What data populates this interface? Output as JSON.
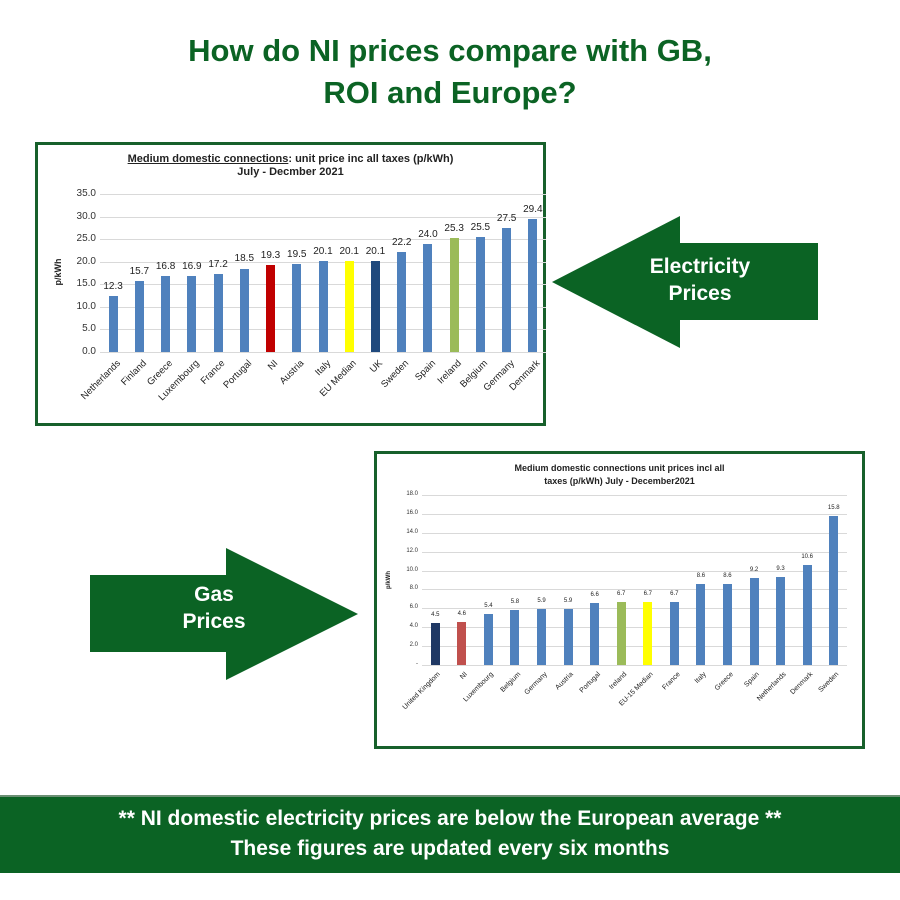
{
  "header": {
    "title_line1": "How do NI prices compare with GB,",
    "title_line2": "ROI and Europe?"
  },
  "electricity_arrow": {
    "line1": "Electricity",
    "line2": "Prices",
    "direction": "left",
    "color": "#0b6324"
  },
  "gas_arrow": {
    "line1": "Gas",
    "line2": "Prices",
    "direction": "right",
    "color": "#0b6324"
  },
  "banner": {
    "line1": "** NI domestic electricity prices are below the European average  **",
    "line2": "These figures are updated every six months",
    "color": "#0b6324"
  },
  "electricity_chart": {
    "title_underlined": "Medium domestic connections",
    "title_rest": ": unit price inc all taxes (p/kWh)",
    "subtitle": "July - Decmber 2021",
    "ylabel": "p/kWh",
    "yticks": [
      "35.0",
      "30.0",
      "25.0",
      "20.0",
      "15.0",
      "10.0",
      "5.0",
      "0.0"
    ]
  },
  "gas_chart": {
    "title_line1": "Medium domestic connections unit prices incl all",
    "title_line2": "taxes (p/kWh) July - December2021",
    "ylabel": "p/kWh",
    "yticks": [
      "18.0",
      "16.0",
      "14.0",
      "12.0",
      "10.0",
      "8.0",
      "6.0",
      "4.0",
      "2.0",
      "-"
    ]
  },
  "chart_data": [
    {
      "type": "bar",
      "title": "Medium domestic connections: unit price inc all taxes (p/kWh) July - Decmber 2021",
      "xlabel": "",
      "ylabel": "p/kWh",
      "ylim": [
        0,
        35
      ],
      "grid": true,
      "legend": "none",
      "categories": [
        "Netherlands",
        "Finland",
        "Greece",
        "Luxembourg",
        "France",
        "Portugal",
        "NI",
        "Austria",
        "Italy",
        "EU Median",
        "UK",
        "Sweden",
        "Spain",
        "Ireland",
        "Belgium",
        "Germany",
        "Denmark"
      ],
      "values": [
        12.3,
        15.7,
        16.8,
        16.9,
        17.2,
        18.5,
        19.3,
        19.5,
        20.1,
        20.1,
        20.1,
        22.2,
        24.0,
        25.3,
        25.5,
        27.5,
        29.4
      ],
      "labels": [
        "12.3",
        "15.7",
        "16.8",
        "16.9",
        "17.2",
        "18.5",
        "19.3",
        "19.5",
        "20.1",
        "20.1",
        "20.1",
        "22.2",
        "24.0",
        "25.3",
        "25.5",
        "27.5",
        "29.4"
      ],
      "colors": [
        "#4f81bd",
        "#4f81bd",
        "#4f81bd",
        "#4f81bd",
        "#4f81bd",
        "#4f81bd",
        "#c00000",
        "#4f81bd",
        "#4f81bd",
        "#ffff00",
        "#1f497d",
        "#4f81bd",
        "#4f81bd",
        "#9bbb59",
        "#4f81bd",
        "#4f81bd",
        "#4f81bd"
      ]
    },
    {
      "type": "bar",
      "title": "Medium domestic connections unit prices incl all taxes (p/kWh) July - December2021",
      "xlabel": "",
      "ylabel": "p/kWh",
      "ylim": [
        0,
        18
      ],
      "grid": true,
      "legend": "none",
      "categories": [
        "United Kingdom",
        "NI",
        "Luxembourg",
        "Belgium",
        "Germany",
        "Austria",
        "Portugal",
        "Ireland",
        "EU-15 Median",
        "France",
        "Italy",
        "Greece",
        "Spain",
        "Netherlands",
        "Denmark",
        "Sweden"
      ],
      "values": [
        4.5,
        4.6,
        5.4,
        5.8,
        5.9,
        5.9,
        6.6,
        6.7,
        6.7,
        6.7,
        8.6,
        8.6,
        9.2,
        9.3,
        10.6,
        15.8
      ],
      "labels": [
        "4.5",
        "4.6",
        "5.4",
        "5.8",
        "5.9",
        "5.9",
        "6.6",
        "6.7",
        "6.7",
        "6.7",
        "8.6",
        "8.6",
        "9.2",
        "9.3",
        "10.6",
        "15.8"
      ],
      "colors": [
        "#1f3864",
        "#c0504d",
        "#4f81bd",
        "#4f81bd",
        "#4f81bd",
        "#4f81bd",
        "#4f81bd",
        "#9bbb59",
        "#ffff00",
        "#4f81bd",
        "#4f81bd",
        "#4f81bd",
        "#4f81bd",
        "#4f81bd",
        "#4f81bd",
        "#4f81bd"
      ]
    }
  ]
}
